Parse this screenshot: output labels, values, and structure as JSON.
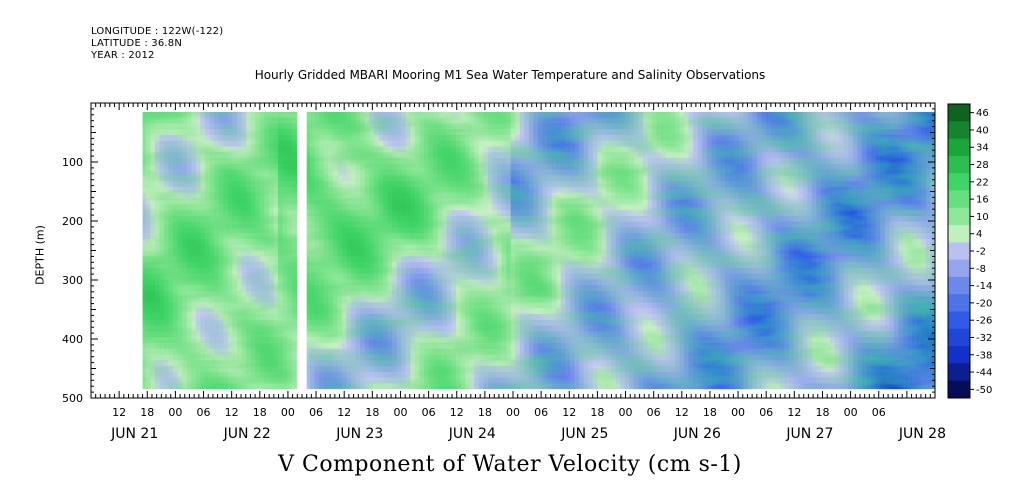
{
  "header": {
    "longitude": "LONGITUDE : 122W(-122)",
    "latitude": "LATITUDE : 36.8N",
    "year": "YEAR : 2012"
  },
  "chart_data": {
    "type": "heatmap",
    "title": "Hourly Gridded MBARI Mooring M1 Sea Water Temperature and Salinity Observations",
    "xlabel": "V Component of Water Velocity (cm s-1)",
    "ylabel": "DEPTH (m)",
    "x_range": [
      "2012-06-21 06:00",
      "2012-06-28 18:00"
    ],
    "ylim": [
      500,
      0
    ],
    "y_ticks": [
      100,
      200,
      300,
      400,
      500
    ],
    "x_hour_ticks": [
      "12",
      "18",
      "00",
      "06",
      "12",
      "18",
      "00",
      "06",
      "12",
      "18",
      "00",
      "06",
      "12",
      "18",
      "00",
      "06",
      "12",
      "18",
      "00",
      "06",
      "12",
      "18",
      "00",
      "06",
      "12",
      "18",
      "00",
      "06"
    ],
    "x_day_labels": [
      "JUN 21",
      "JUN 22",
      "JUN 23",
      "JUN 24",
      "JUN 25",
      "JUN 26",
      "JUN 27",
      "JUN 28"
    ],
    "colorbar": {
      "range": [
        -50,
        50
      ],
      "labels": [
        46,
        40,
        34,
        28,
        22,
        16,
        10,
        4,
        -2,
        -8,
        -14,
        -20,
        -26,
        -32,
        -38,
        -44,
        -50
      ]
    },
    "depth_coverage_m": [
      15,
      485
    ],
    "data_gaps": [
      {
        "from": "2012-06-21 06:00",
        "to": "2012-06-21 17:00"
      },
      {
        "from": "2012-06-23 02:00",
        "to": "2012-06-23 04:00"
      }
    ],
    "grid": false
  }
}
